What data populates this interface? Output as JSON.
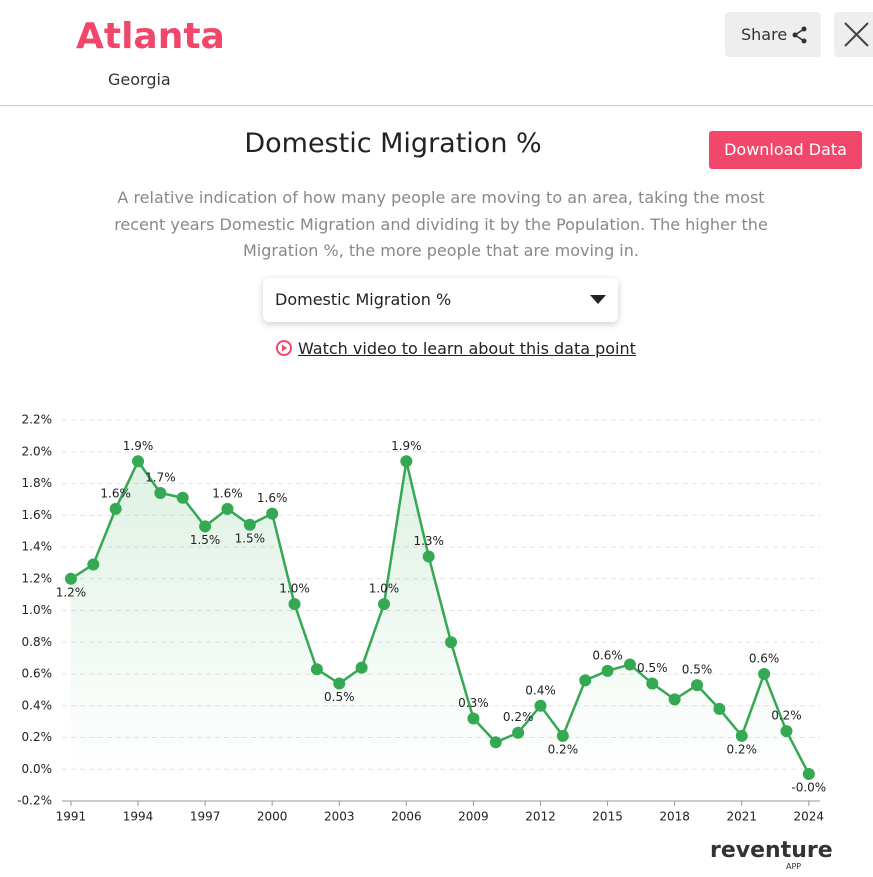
{
  "header": {
    "city": "Atlanta",
    "state": "Georgia",
    "share": "Share"
  },
  "section": {
    "title": "Domestic Migration %",
    "download": "Download Data",
    "description": "A relative indication of how many people are moving to an area, taking the most recent years Domestic Migration and dividing it by the Population. The higher the Migration %, the more people that are moving in.",
    "dropdown": "Domestic Migration %",
    "video_link": "Watch video to learn about this data point"
  },
  "logo": {
    "name": "reventure",
    "sub": "APP"
  },
  "chart_data": {
    "type": "line",
    "color": "#34a853",
    "grid": true,
    "x": [
      1991,
      1992,
      1993,
      1994,
      1995,
      1996,
      1997,
      1998,
      1999,
      2000,
      2001,
      2002,
      2003,
      2004,
      2005,
      2006,
      2007,
      2008,
      2009,
      2010,
      2011,
      2012,
      2013,
      2014,
      2015,
      2016,
      2017,
      2018,
      2019,
      2020,
      2021,
      2022,
      2023,
      2024
    ],
    "values": [
      1.2,
      1.29,
      1.64,
      1.94,
      1.74,
      1.71,
      1.53,
      1.64,
      1.54,
      1.61,
      1.04,
      0.63,
      0.54,
      0.64,
      1.04,
      1.94,
      1.34,
      0.8,
      0.32,
      0.17,
      0.23,
      0.4,
      0.21,
      0.56,
      0.62,
      0.66,
      0.54,
      0.44,
      0.53,
      0.38,
      0.21,
      0.6,
      0.24,
      -0.03
    ],
    "value_labels": [
      "1.2%",
      null,
      "1.6%",
      "1.9%",
      "1.7%",
      null,
      "1.5%",
      "1.6%",
      "1.5%",
      "1.6%",
      "1.0%",
      null,
      "0.5%",
      null,
      "1.0%",
      "1.9%",
      "1.3%",
      null,
      "0.3%",
      null,
      "0.2%",
      "0.4%",
      "0.2%",
      null,
      "0.6%",
      null,
      "0.5%",
      null,
      "0.5%",
      null,
      "0.2%",
      "0.6%",
      "0.2%",
      "-0.0%"
    ],
    "xlim": [
      1990.6,
      2024.5
    ],
    "xticks": [
      1991,
      1994,
      1997,
      2000,
      2003,
      2006,
      2009,
      2012,
      2015,
      2018,
      2021,
      2024
    ],
    "ylim": [
      -0.2,
      2.2
    ],
    "yticks": [
      {
        "value": -0.2,
        "label": "-0.2%"
      },
      {
        "value": 0,
        "label": "0.0%"
      },
      {
        "value": 0.2,
        "label": "0.2%"
      },
      {
        "value": 0.4,
        "label": "0.4%"
      },
      {
        "value": 0.6,
        "label": "0.6%"
      },
      {
        "value": 0.8,
        "label": "0.8%"
      },
      {
        "value": 1.0,
        "label": "1.0%"
      },
      {
        "value": 1.2,
        "label": "1.2%"
      },
      {
        "value": 1.4,
        "label": "1.4%"
      },
      {
        "value": 1.6,
        "label": "1.6%"
      },
      {
        "value": 1.8,
        "label": "1.8%"
      },
      {
        "value": 2.0,
        "label": "2.0%"
      },
      {
        "value": 2.2,
        "label": "2.2%"
      }
    ]
  }
}
